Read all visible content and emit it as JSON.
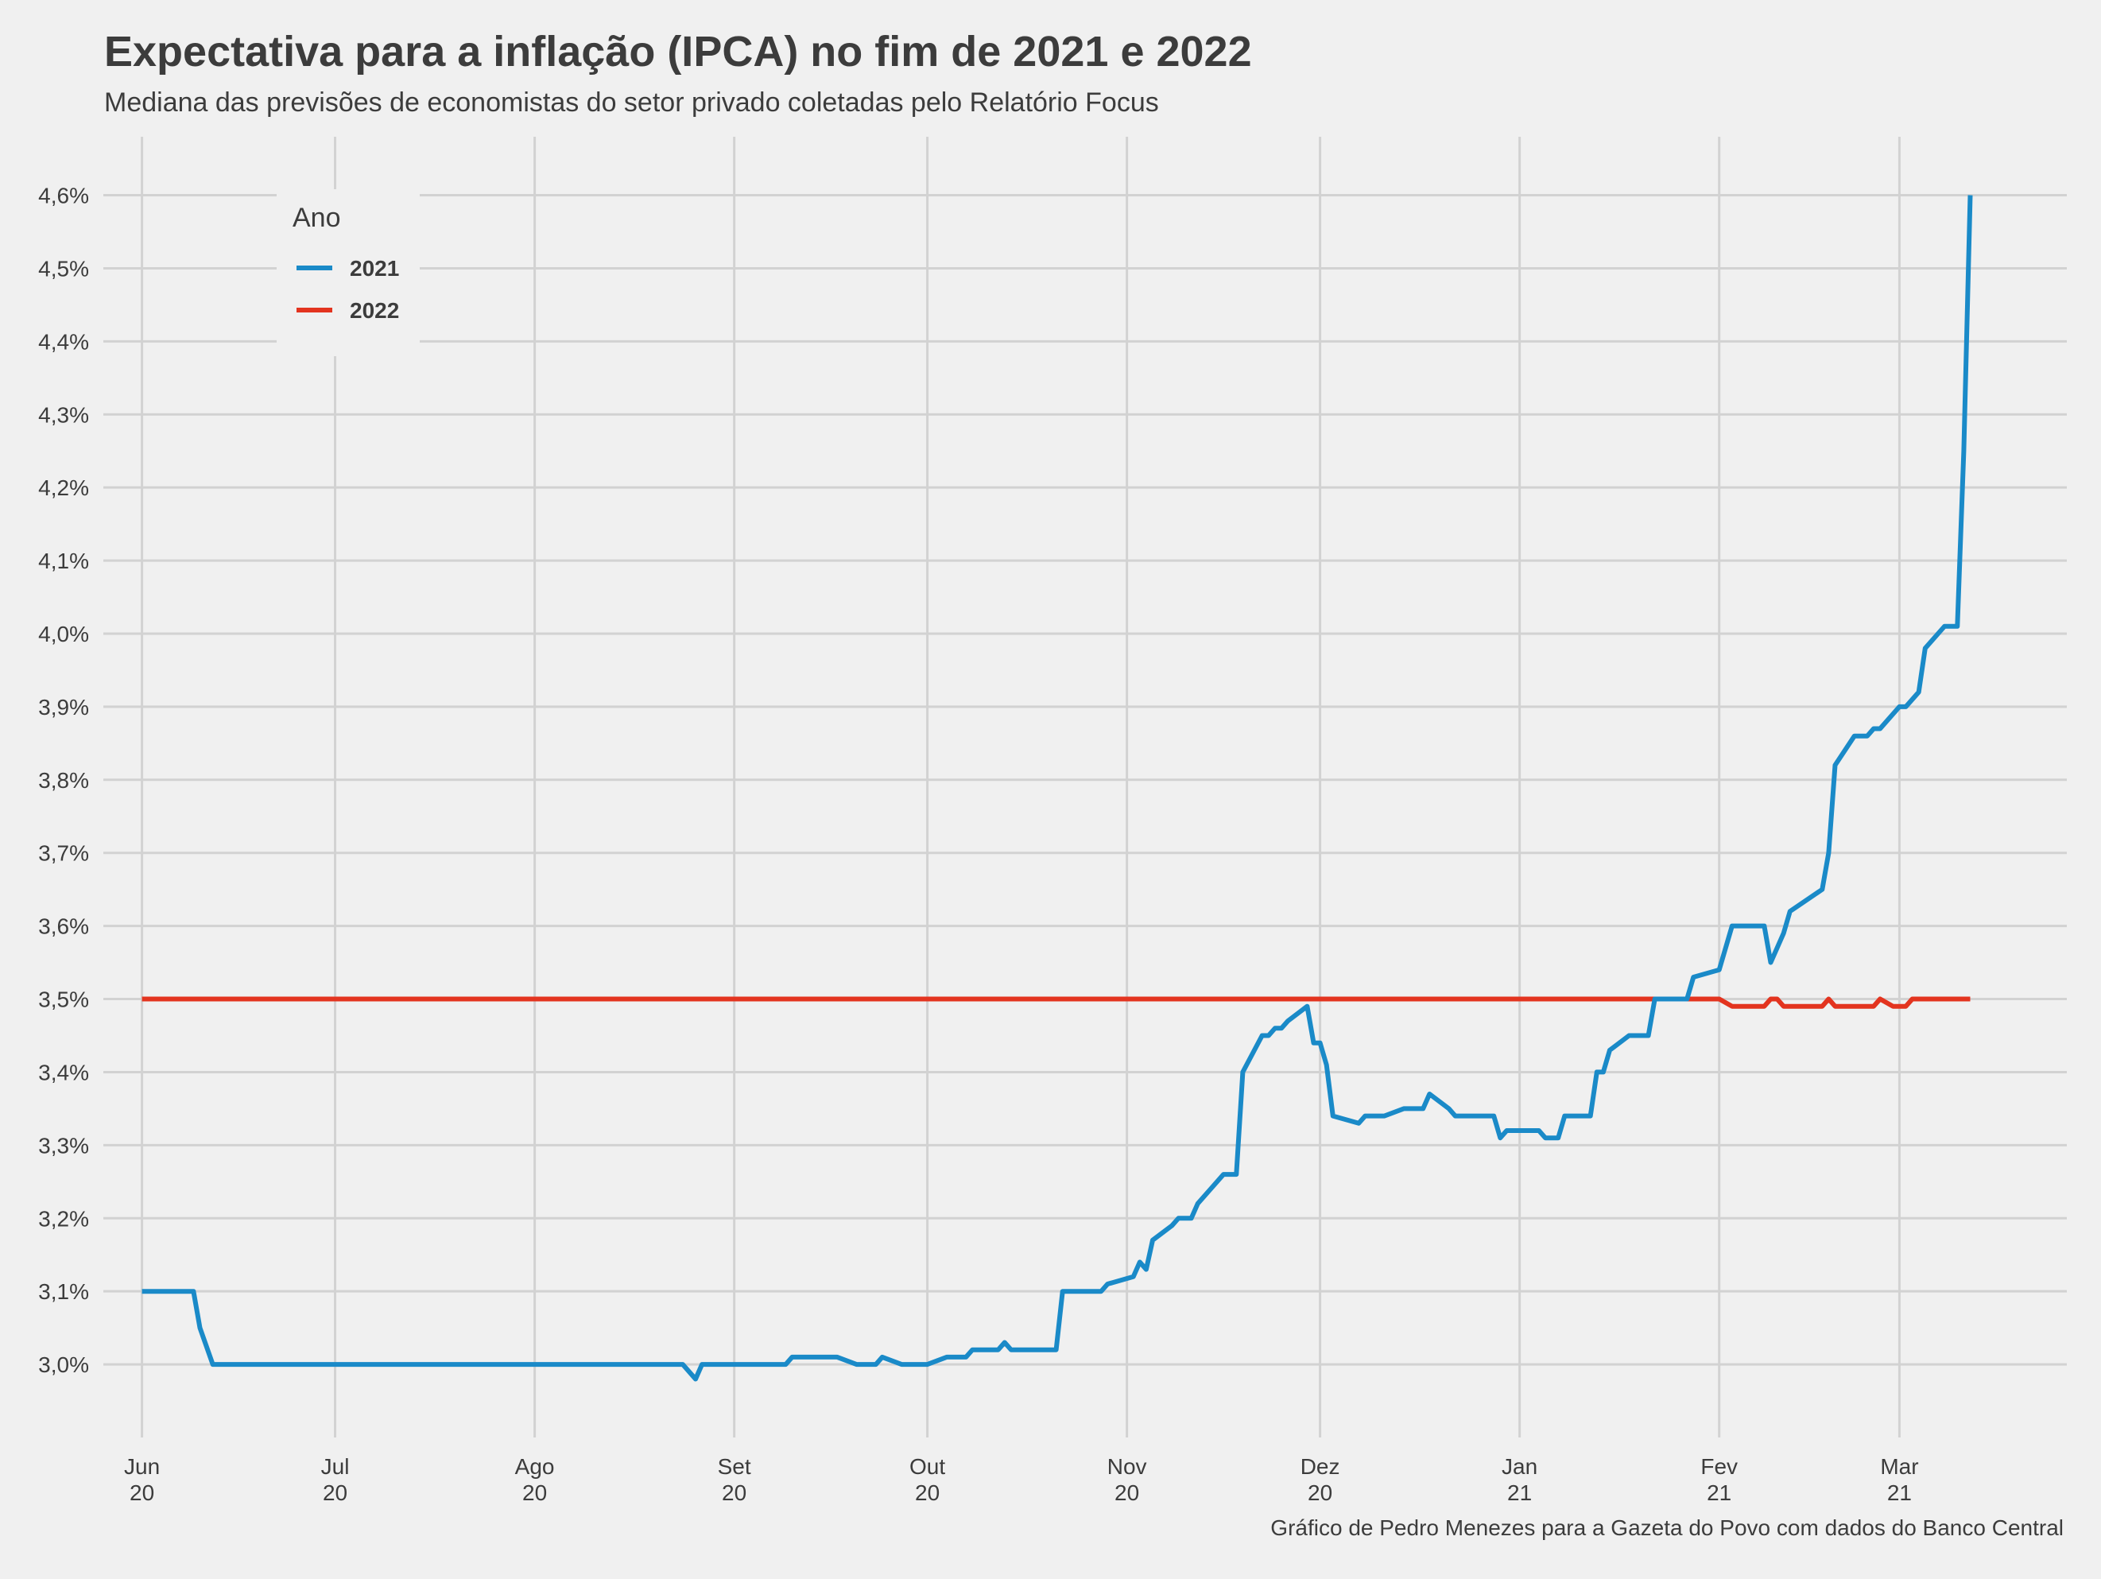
{
  "title": "Expectativa para a inflação (IPCA) no fim de 2021 e 2022",
  "subtitle": "Mediana das previsões de economistas do setor privado coletadas pelo Relatório Focus",
  "caption": "Gráfico de Pedro Menezes para a Gazeta do Povo com dados do Banco Central",
  "colors": {
    "background": "#f0f0f0",
    "grid": "#d2d2d2",
    "2021": "#1a8ac8",
    "2022": "#e3341f"
  },
  "chart_data": {
    "type": "line",
    "title": "Expectativa para a inflação (IPCA) no fim de 2021 e 2022",
    "xlabel": "",
    "ylabel": "",
    "x_type": "date",
    "xlim": [
      "2020-05-26",
      "2021-03-27"
    ],
    "ylim": [
      2.9,
      4.68
    ],
    "y_ticks": [
      3.0,
      3.1,
      3.2,
      3.3,
      3.4,
      3.5,
      3.6,
      3.7,
      3.8,
      3.9,
      4.0,
      4.1,
      4.2,
      4.3,
      4.4,
      4.5,
      4.6
    ],
    "y_tick_labels": [
      "3,0%",
      "3,1%",
      "3,2%",
      "3,3%",
      "3,4%",
      "3,5%",
      "3,6%",
      "3,7%",
      "3,8%",
      "3,9%",
      "4,0%",
      "4,1%",
      "4,2%",
      "4,3%",
      "4,4%",
      "4,5%",
      "4,6%"
    ],
    "x_ticks": [
      {
        "date": "2020-06-01",
        "month": "Jun",
        "year": "20"
      },
      {
        "date": "2020-07-01",
        "month": "Jul",
        "year": "20"
      },
      {
        "date": "2020-08-01",
        "month": "Ago",
        "year": "20"
      },
      {
        "date": "2020-09-01",
        "month": "Set",
        "year": "20"
      },
      {
        "date": "2020-10-01",
        "month": "Out",
        "year": "20"
      },
      {
        "date": "2020-11-01",
        "month": "Nov",
        "year": "20"
      },
      {
        "date": "2020-12-01",
        "month": "Dez",
        "year": "20"
      },
      {
        "date": "2021-01-01",
        "month": "Jan",
        "year": "21"
      },
      {
        "date": "2021-02-01",
        "month": "Fev",
        "year": "21"
      },
      {
        "date": "2021-03-01",
        "month": "Mar",
        "year": "21"
      }
    ],
    "grid": true,
    "legend": {
      "title": "Ano",
      "position": "top-left"
    },
    "series": [
      {
        "name": "2021",
        "color": "#1a8ac8",
        "points": [
          [
            "2020-06-01",
            3.1
          ],
          [
            "2020-06-09",
            3.1
          ],
          [
            "2020-06-10",
            3.05
          ],
          [
            "2020-06-12",
            3.0
          ],
          [
            "2020-08-24",
            3.0
          ],
          [
            "2020-08-26",
            2.98
          ],
          [
            "2020-08-27",
            3.0
          ],
          [
            "2020-09-09",
            3.0
          ],
          [
            "2020-09-10",
            3.01
          ],
          [
            "2020-09-17",
            3.01
          ],
          [
            "2020-09-20",
            3.0
          ],
          [
            "2020-09-23",
            3.0
          ],
          [
            "2020-09-24",
            3.01
          ],
          [
            "2020-09-27",
            3.0
          ],
          [
            "2020-10-01",
            3.0
          ],
          [
            "2020-10-04",
            3.01
          ],
          [
            "2020-10-07",
            3.01
          ],
          [
            "2020-10-08",
            3.02
          ],
          [
            "2020-10-12",
            3.02
          ],
          [
            "2020-10-13",
            3.03
          ],
          [
            "2020-10-14",
            3.02
          ],
          [
            "2020-10-21",
            3.02
          ],
          [
            "2020-10-22",
            3.1
          ],
          [
            "2020-10-28",
            3.1
          ],
          [
            "2020-10-29",
            3.11
          ],
          [
            "2020-11-02",
            3.12
          ],
          [
            "2020-11-03",
            3.14
          ],
          [
            "2020-11-04",
            3.13
          ],
          [
            "2020-11-05",
            3.17
          ],
          [
            "2020-11-08",
            3.19
          ],
          [
            "2020-11-09",
            3.2
          ],
          [
            "2020-11-11",
            3.2
          ],
          [
            "2020-11-12",
            3.22
          ],
          [
            "2020-11-16",
            3.26
          ],
          [
            "2020-11-18",
            3.26
          ],
          [
            "2020-11-19",
            3.4
          ],
          [
            "2020-11-22",
            3.45
          ],
          [
            "2020-11-23",
            3.45
          ],
          [
            "2020-11-24",
            3.46
          ],
          [
            "2020-11-25",
            3.46
          ],
          [
            "2020-11-26",
            3.47
          ],
          [
            "2020-11-29",
            3.49
          ],
          [
            "2020-11-30",
            3.44
          ],
          [
            "2020-12-01",
            3.44
          ],
          [
            "2020-12-02",
            3.41
          ],
          [
            "2020-12-03",
            3.34
          ],
          [
            "2020-12-07",
            3.33
          ],
          [
            "2020-12-08",
            3.34
          ],
          [
            "2020-12-11",
            3.34
          ],
          [
            "2020-12-14",
            3.35
          ],
          [
            "2020-12-17",
            3.35
          ],
          [
            "2020-12-18",
            3.37
          ],
          [
            "2020-12-21",
            3.35
          ],
          [
            "2020-12-22",
            3.34
          ],
          [
            "2020-12-28",
            3.34
          ],
          [
            "2020-12-29",
            3.31
          ],
          [
            "2020-12-30",
            3.32
          ],
          [
            "2021-01-04",
            3.32
          ],
          [
            "2021-01-05",
            3.31
          ],
          [
            "2021-01-07",
            3.31
          ],
          [
            "2021-01-08",
            3.34
          ],
          [
            "2021-01-12",
            3.34
          ],
          [
            "2021-01-13",
            3.4
          ],
          [
            "2021-01-14",
            3.4
          ],
          [
            "2021-01-15",
            3.43
          ],
          [
            "2021-01-18",
            3.45
          ],
          [
            "2021-01-21",
            3.45
          ],
          [
            "2021-01-22",
            3.5
          ],
          [
            "2021-01-27",
            3.5
          ],
          [
            "2021-01-28",
            3.53
          ],
          [
            "2021-02-01",
            3.54
          ],
          [
            "2021-02-03",
            3.6
          ],
          [
            "2021-02-08",
            3.6
          ],
          [
            "2021-02-09",
            3.55
          ],
          [
            "2021-02-11",
            3.59
          ],
          [
            "2021-02-12",
            3.62
          ],
          [
            "2021-02-17",
            3.65
          ],
          [
            "2021-02-18",
            3.7
          ],
          [
            "2021-02-19",
            3.82
          ],
          [
            "2021-02-22",
            3.86
          ],
          [
            "2021-02-24",
            3.86
          ],
          [
            "2021-02-25",
            3.87
          ],
          [
            "2021-02-26",
            3.87
          ],
          [
            "2021-03-01",
            3.9
          ],
          [
            "2021-03-02",
            3.9
          ],
          [
            "2021-03-04",
            3.92
          ],
          [
            "2021-03-05",
            3.98
          ],
          [
            "2021-03-08",
            4.01
          ],
          [
            "2021-03-10",
            4.01
          ],
          [
            "2021-03-11",
            4.25
          ],
          [
            "2021-03-12",
            4.6
          ]
        ]
      },
      {
        "name": "2022",
        "color": "#e3341f",
        "points": [
          [
            "2020-06-01",
            3.5
          ],
          [
            "2021-02-01",
            3.5
          ],
          [
            "2021-02-03",
            3.49
          ],
          [
            "2021-02-08",
            3.49
          ],
          [
            "2021-02-09",
            3.5
          ],
          [
            "2021-02-10",
            3.5
          ],
          [
            "2021-02-11",
            3.49
          ],
          [
            "2021-02-17",
            3.49
          ],
          [
            "2021-02-18",
            3.5
          ],
          [
            "2021-02-19",
            3.49
          ],
          [
            "2021-02-25",
            3.49
          ],
          [
            "2021-02-26",
            3.5
          ],
          [
            "2021-02-28",
            3.49
          ],
          [
            "2021-03-02",
            3.49
          ],
          [
            "2021-03-03",
            3.5
          ],
          [
            "2021-03-12",
            3.5
          ]
        ]
      }
    ]
  }
}
